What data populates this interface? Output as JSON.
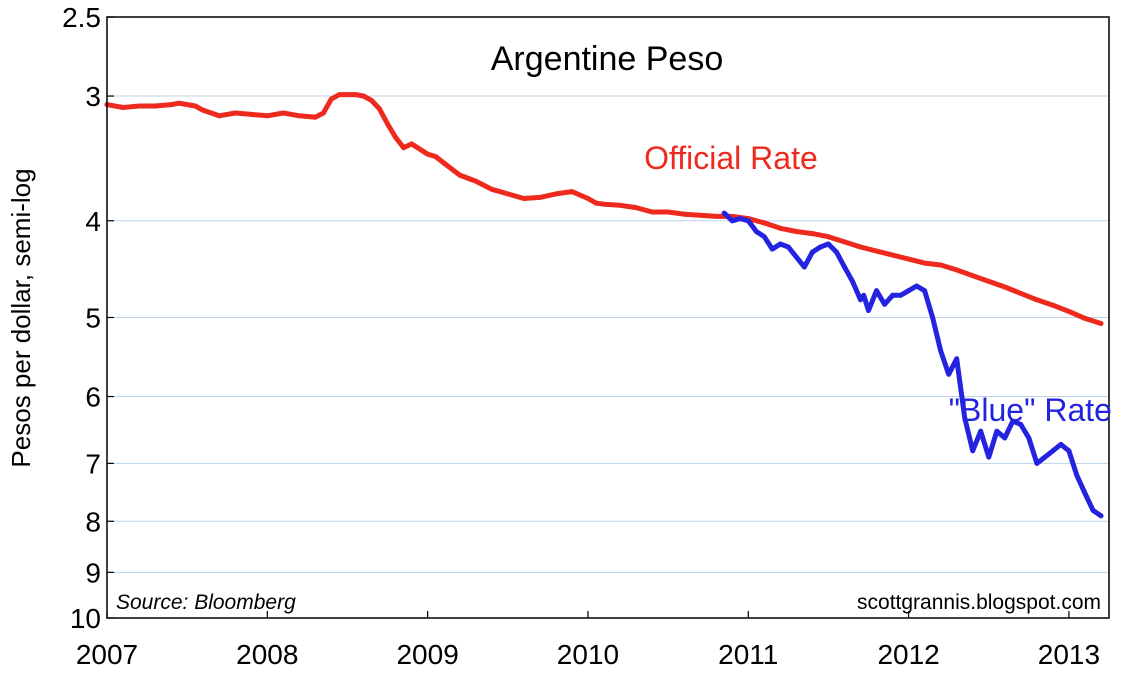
{
  "chart_data": {
    "type": "line",
    "title": "Argentine Peso",
    "ylabel": "Pesos per dollar, semi-log",
    "xlabel": "",
    "y_scale": "log",
    "y_inverted": true,
    "ylim": [
      2.5,
      10
    ],
    "yticks": [
      2.5,
      3,
      4,
      5,
      6,
      7,
      8,
      9,
      10
    ],
    "xlim": [
      2007.0,
      2013.25
    ],
    "xticks": [
      "2007",
      "2008",
      "2009",
      "2010",
      "2011",
      "2012",
      "2013"
    ],
    "grid": true,
    "source_note": "Source: Bloomberg",
    "credit": "scottgrannis.blogspot.com",
    "colors": {
      "official": "#ee2a1e",
      "blue": "#2323e0",
      "grid": "#bcd3ea"
    },
    "series": [
      {
        "name": "Official Rate",
        "x": [
          2007.0,
          2007.1,
          2007.2,
          2007.3,
          2007.4,
          2007.45,
          2007.55,
          2007.6,
          2007.7,
          2007.8,
          2007.9,
          2008.0,
          2008.1,
          2008.2,
          2008.3,
          2008.35,
          2008.4,
          2008.45,
          2008.55,
          2008.6,
          2008.65,
          2008.7,
          2008.75,
          2008.8,
          2008.85,
          2008.9,
          2009.0,
          2009.05,
          2009.1,
          2009.2,
          2009.3,
          2009.4,
          2009.5,
          2009.6,
          2009.7,
          2009.8,
          2009.9,
          2010.0,
          2010.05,
          2010.1,
          2010.2,
          2010.3,
          2010.4,
          2010.5,
          2010.6,
          2010.7,
          2010.8,
          2010.9,
          2011.0,
          2011.1,
          2011.2,
          2011.3,
          2011.4,
          2011.5,
          2011.6,
          2011.7,
          2011.8,
          2011.9,
          2012.0,
          2012.1,
          2012.2,
          2012.3,
          2012.4,
          2012.5,
          2012.6,
          2012.7,
          2012.8,
          2012.9,
          2013.0,
          2013.1,
          2013.2
        ],
        "values": [
          3.06,
          3.08,
          3.07,
          3.07,
          3.06,
          3.05,
          3.07,
          3.1,
          3.14,
          3.12,
          3.13,
          3.14,
          3.12,
          3.14,
          3.15,
          3.12,
          3.02,
          2.99,
          2.99,
          3.0,
          3.03,
          3.09,
          3.2,
          3.3,
          3.38,
          3.35,
          3.43,
          3.45,
          3.5,
          3.6,
          3.65,
          3.72,
          3.76,
          3.8,
          3.79,
          3.76,
          3.74,
          3.8,
          3.84,
          3.85,
          3.86,
          3.88,
          3.92,
          3.92,
          3.94,
          3.95,
          3.96,
          3.96,
          3.98,
          4.02,
          4.07,
          4.1,
          4.12,
          4.15,
          4.2,
          4.25,
          4.29,
          4.33,
          4.37,
          4.41,
          4.43,
          4.48,
          4.54,
          4.6,
          4.66,
          4.73,
          4.8,
          4.86,
          4.93,
          5.01,
          5.07
        ]
      },
      {
        "name": "\"Blue\" Rate",
        "x": [
          2010.85,
          2010.9,
          2010.95,
          2011.0,
          2011.05,
          2011.1,
          2011.15,
          2011.2,
          2011.25,
          2011.3,
          2011.35,
          2011.4,
          2011.45,
          2011.5,
          2011.55,
          2011.6,
          2011.65,
          2011.7,
          2011.72,
          2011.75,
          2011.8,
          2011.85,
          2011.9,
          2011.95,
          2012.0,
          2012.05,
          2012.1,
          2012.15,
          2012.2,
          2012.25,
          2012.3,
          2012.35,
          2012.4,
          2012.45,
          2012.5,
          2012.55,
          2012.6,
          2012.65,
          2012.7,
          2012.75,
          2012.8,
          2012.85,
          2012.9,
          2012.95,
          2013.0,
          2013.05,
          2013.1,
          2013.15,
          2013.2
        ],
        "values": [
          3.93,
          4.0,
          3.98,
          4.0,
          4.1,
          4.15,
          4.27,
          4.22,
          4.25,
          4.35,
          4.45,
          4.3,
          4.25,
          4.22,
          4.3,
          4.45,
          4.6,
          4.8,
          4.75,
          4.92,
          4.7,
          4.85,
          4.75,
          4.75,
          4.7,
          4.65,
          4.7,
          5.0,
          5.4,
          5.7,
          5.5,
          6.3,
          6.8,
          6.5,
          6.9,
          6.5,
          6.6,
          6.35,
          6.4,
          6.6,
          7.0,
          6.9,
          6.8,
          6.7,
          6.8,
          7.2,
          7.5,
          7.8,
          7.9
        ]
      }
    ],
    "annotations": [
      {
        "text": "Official Rate",
        "series": "Official Rate",
        "x": 2010.35,
        "y": 3.55
      },
      {
        "text": "\"Blue\" Rate",
        "series": "\"Blue\" Rate",
        "x": 2012.25,
        "y": 6.35
      }
    ]
  }
}
